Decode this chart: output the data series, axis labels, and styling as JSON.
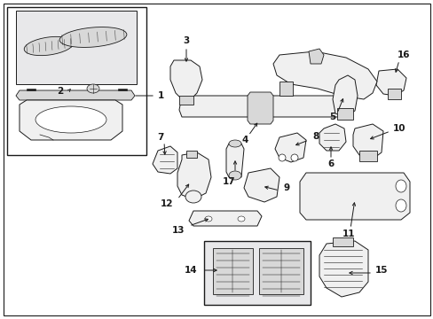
{
  "bg_color": "#ffffff",
  "line_color": "#1a1a1a",
  "figsize": [
    4.89,
    3.6
  ],
  "dpi": 100,
  "gray_fill": "#f0f0f0",
  "dark_fill": "#d8d8d8",
  "box_fill": "#eaeaea",
  "inset_fill": "#e8e8ea"
}
